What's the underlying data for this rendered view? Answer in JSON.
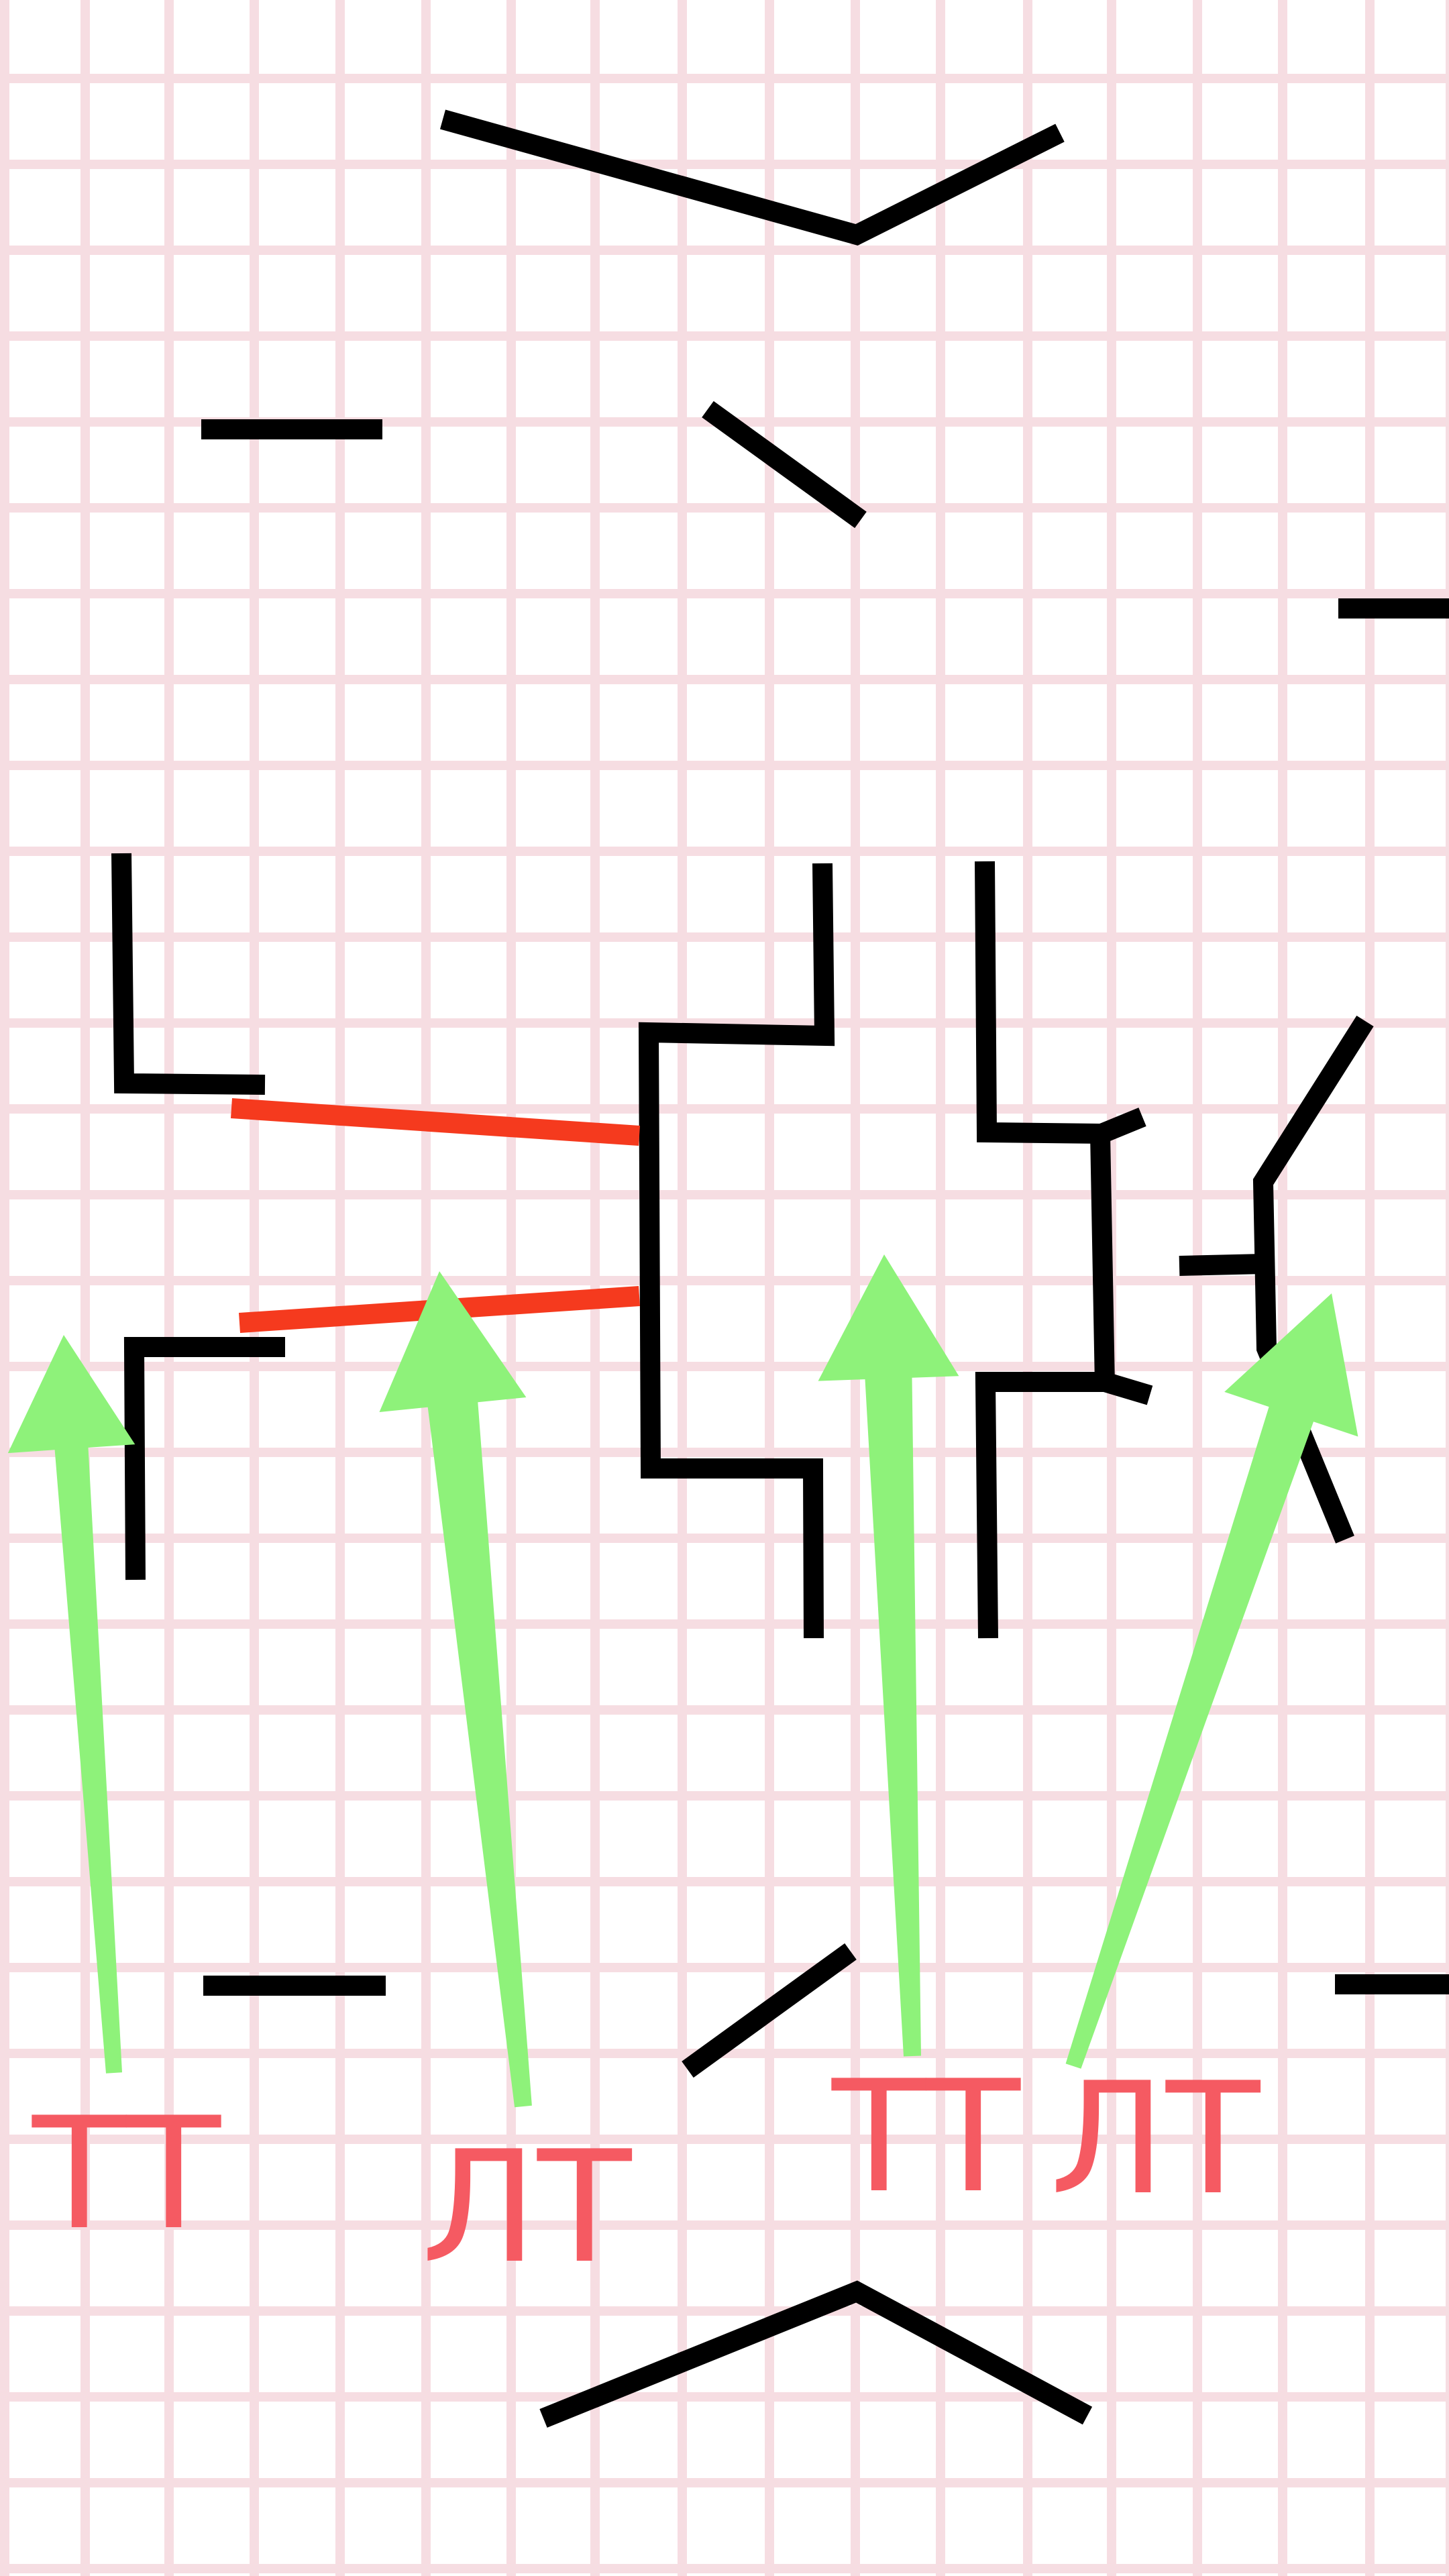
{
  "colors": {
    "background": "#ffffff",
    "grid": "#f6dde2",
    "stroke": "#000000",
    "link": "#f53a1e",
    "arrow": "#8ef27a",
    "label": "#f55a62"
  },
  "labels": {
    "l1": "ТТ",
    "l2": "ЛТ",
    "l3": "ТТ",
    "l4": "ЛТ"
  },
  "icons": [
    "grid-background",
    "arrow-up-icon"
  ]
}
